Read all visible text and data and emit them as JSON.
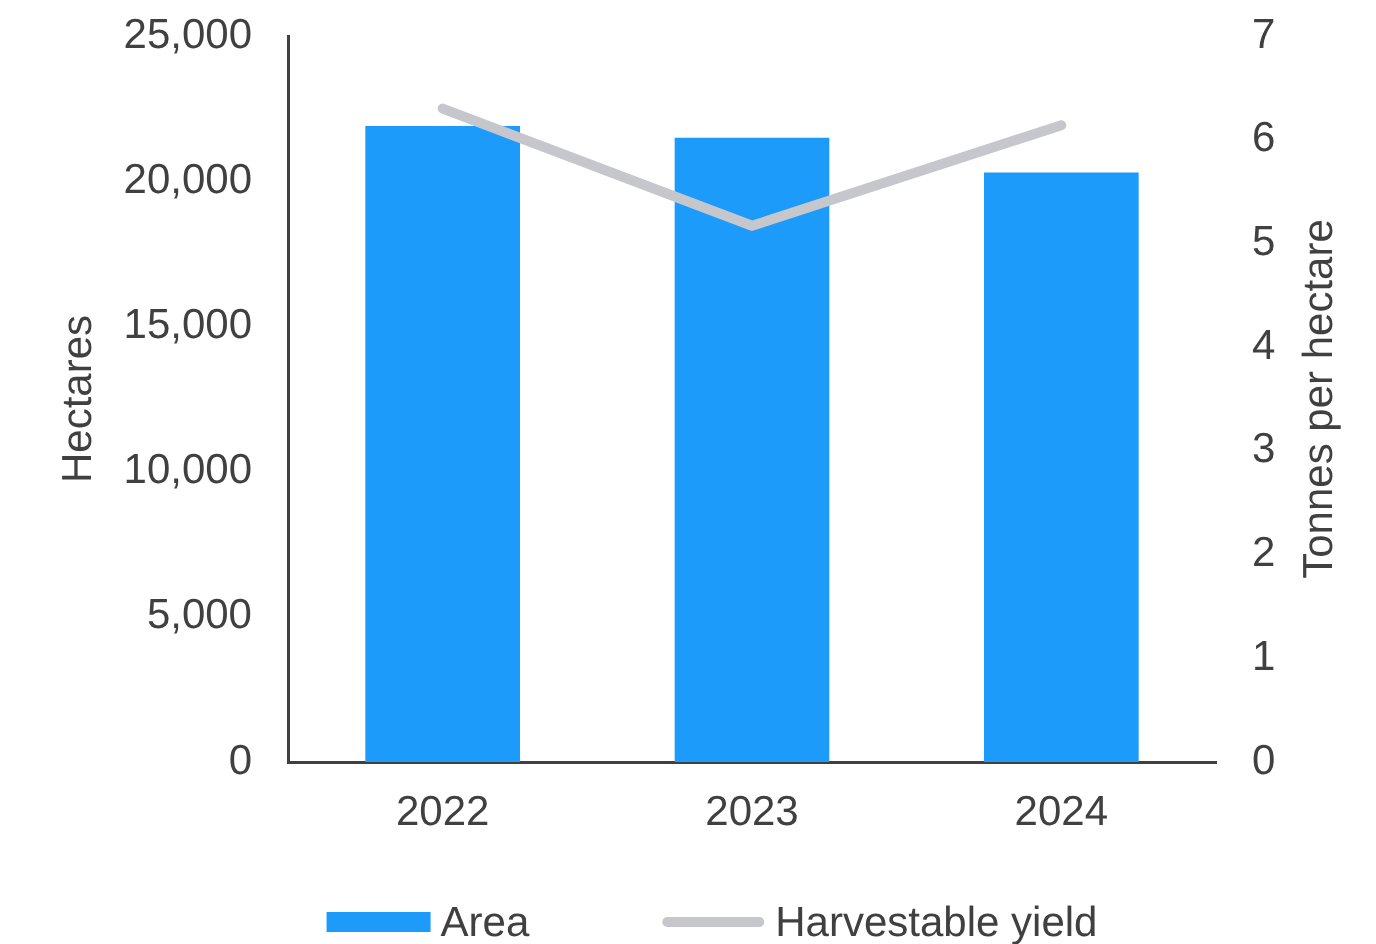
{
  "chart_data": {
    "type": "bar",
    "categories": [
      "2022",
      "2023",
      "2024"
    ],
    "ylabel": "Hectares",
    "y2label": "Tonnes per hectare",
    "series": [
      {
        "name": "Area",
        "color": "#1c9bfa",
        "values": [
          21900,
          21500,
          20300
        ]
      },
      {
        "name": "Harvestable yield",
        "type": "line",
        "axis": "y2",
        "color": "#c6c6cd",
        "values": [
          6.3,
          5.17,
          6.14
        ]
      }
    ],
    "ylim": [
      0,
      25000
    ],
    "yticks": [
      0,
      {
        "value": 5000,
        "label": "5,000"
      },
      {
        "value": 10000,
        "label": "10,000"
      },
      {
        "value": 15000,
        "label": "15,000"
      },
      {
        "value": 20000,
        "label": "20,000"
      },
      {
        "value": 25000,
        "label": "25,000"
      }
    ],
    "y2lim": [
      0,
      7
    ],
    "y2ticks": [
      0,
      1,
      2,
      3,
      4,
      5,
      6,
      7
    ],
    "legend": "bottom"
  }
}
